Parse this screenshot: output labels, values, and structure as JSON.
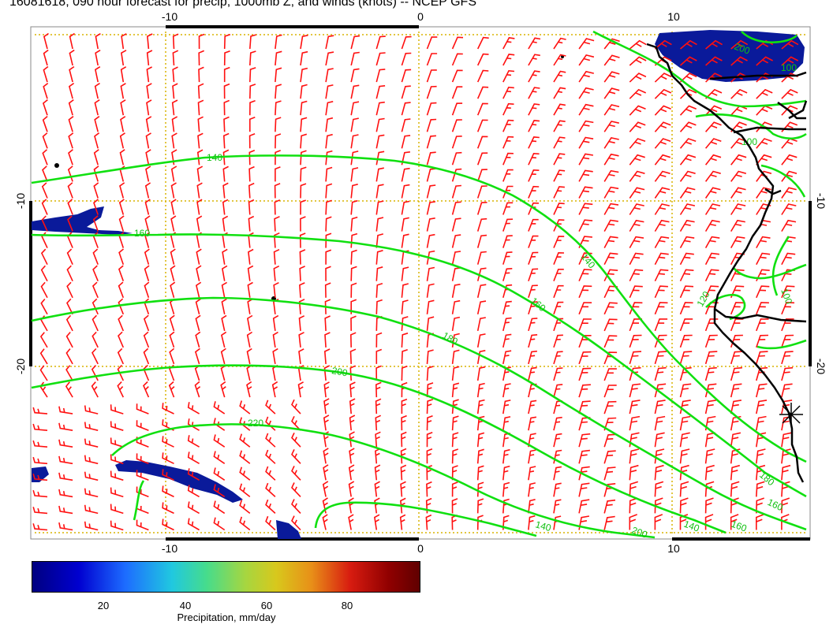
{
  "title": "16081618, 090 hour forecast for precip, 1000mb Z, and winds (knots) -- NCEP GFS",
  "axes": {
    "x_ticks": [
      "-10",
      "0",
      "10"
    ],
    "y_ticks": [
      "-10",
      "-20"
    ]
  },
  "contour_labels": [
    "140",
    "160",
    "140",
    "160",
    "180",
    "200",
    "220",
    "140",
    "160",
    "180",
    "200",
    "140",
    "160",
    "200",
    "100",
    "120",
    "100",
    "100"
  ],
  "colorbar": {
    "ticks": [
      "20",
      "40",
      "60",
      "80"
    ],
    "label": "Precipitation, mm/day"
  },
  "colors": {
    "wind_barbs": "#ff1010",
    "contours": "#10e010",
    "precip": "#0a1a9a",
    "grid": "#d8b400",
    "coast": "#000000"
  }
}
